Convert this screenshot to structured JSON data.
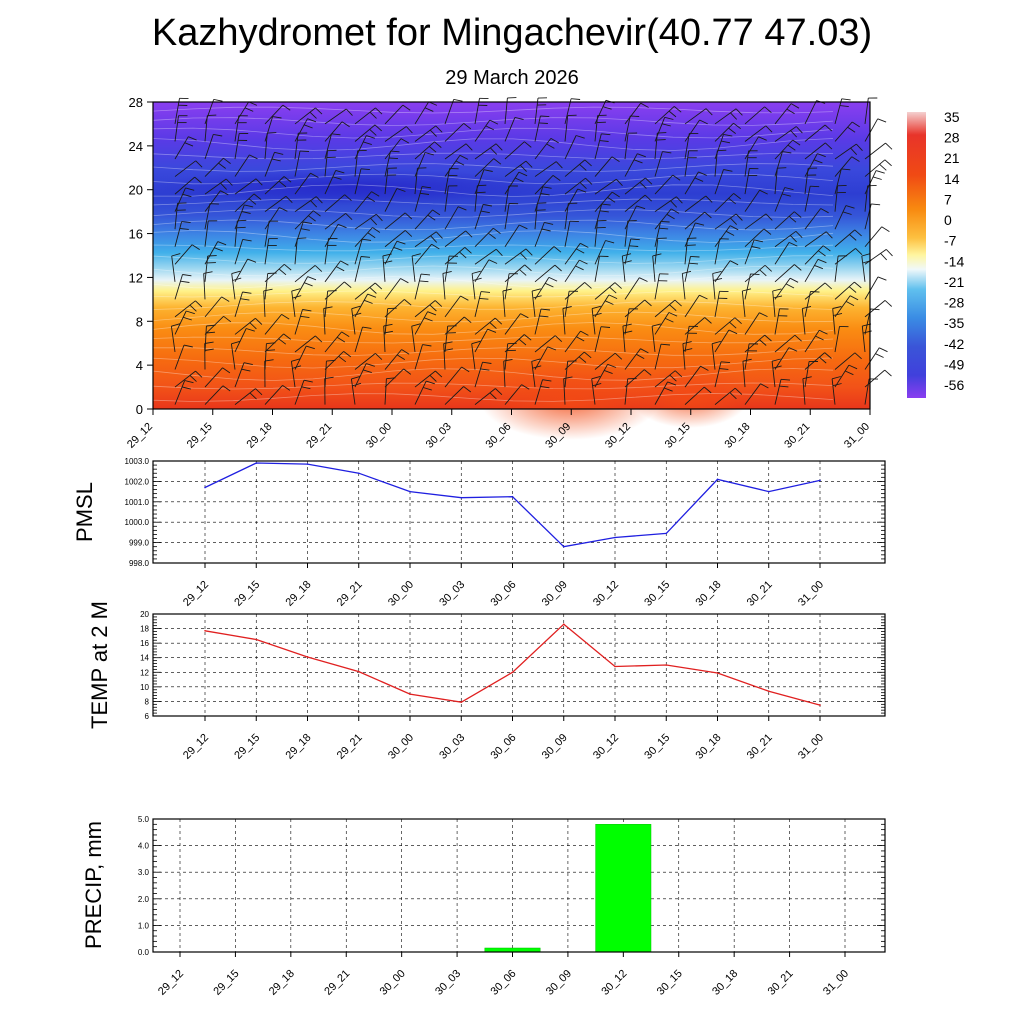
{
  "page": {
    "title": "Kazhydromet for Mingachevir(40.77 47.03)",
    "subtitle": "29 March 2026"
  },
  "colors": {
    "pmsl_line": "#1f1fe0",
    "temp_line": "#e02020",
    "precip_bar": "#00ff00",
    "grid": "#000000"
  },
  "chart_data": [
    {
      "type": "heatmap",
      "categories": [
        "29_12",
        "29_15",
        "29_18",
        "29_21",
        "30_00",
        "30_03",
        "30_06",
        "30_09",
        "30_12",
        "30_15",
        "30_18",
        "30_21",
        "31_00"
      ],
      "y_ticks": [
        "0",
        "4",
        "8",
        "12",
        "16",
        "20",
        "24",
        "28"
      ],
      "ylim": [
        0,
        28
      ],
      "colorbar_labels": [
        "35",
        "28",
        "21",
        "14",
        "7",
        "0",
        "-7",
        "-14",
        "-21",
        "-28",
        "-35",
        "-42",
        "-49",
        "-56"
      ],
      "wind_barbs": true
    },
    {
      "type": "line",
      "ylabel": "PMSL",
      "categories": [
        "29_12",
        "29_15",
        "29_18",
        "29_21",
        "30_00",
        "30_03",
        "30_06",
        "30_09",
        "30_12",
        "30_15",
        "30_18",
        "30_21",
        "31_00"
      ],
      "series": [
        {
          "values": [
            1001.7,
            1002.9,
            1002.85,
            1002.4,
            1001.5,
            1001.2,
            1001.25,
            998.8,
            999.25,
            999.45,
            1002.1,
            1001.5,
            1002.05
          ]
        }
      ],
      "y_ticks": [
        "998.0",
        "999.0",
        "1000.0",
        "1001.0",
        "1002.0",
        "1003.0"
      ],
      "ylim": [
        998,
        1003
      ],
      "grid": true
    },
    {
      "type": "line",
      "ylabel": "TEMP at 2 M",
      "categories": [
        "29_12",
        "29_15",
        "29_18",
        "29_21",
        "30_00",
        "30_03",
        "30_06",
        "30_09",
        "30_12",
        "30_15",
        "30_18",
        "30_21",
        "31_00"
      ],
      "series": [
        {
          "values": [
            17.7,
            16.5,
            14.1,
            12.1,
            9.0,
            7.9,
            12.0,
            18.6,
            12.8,
            13.0,
            11.9,
            9.4,
            7.5
          ]
        }
      ],
      "y_ticks": [
        "6",
        "8",
        "10",
        "12",
        "14",
        "16",
        "18",
        "20"
      ],
      "ylim": [
        6,
        20
      ],
      "grid": true
    },
    {
      "type": "bar",
      "ylabel": "PRECIP, mm",
      "categories": [
        "29_12",
        "29_15",
        "29_18",
        "29_21",
        "30_00",
        "30_03",
        "30_06",
        "30_09",
        "30_12",
        "30_15",
        "30_18",
        "30_21",
        "31_00"
      ],
      "values": [
        0,
        0,
        0,
        0,
        0,
        0,
        0.15,
        0,
        4.8,
        0,
        0,
        0,
        0
      ],
      "y_ticks": [
        "0.0",
        "1.0",
        "2.0",
        "3.0",
        "4.0",
        "5.0"
      ],
      "ylim": [
        0,
        5
      ],
      "grid": true
    }
  ]
}
